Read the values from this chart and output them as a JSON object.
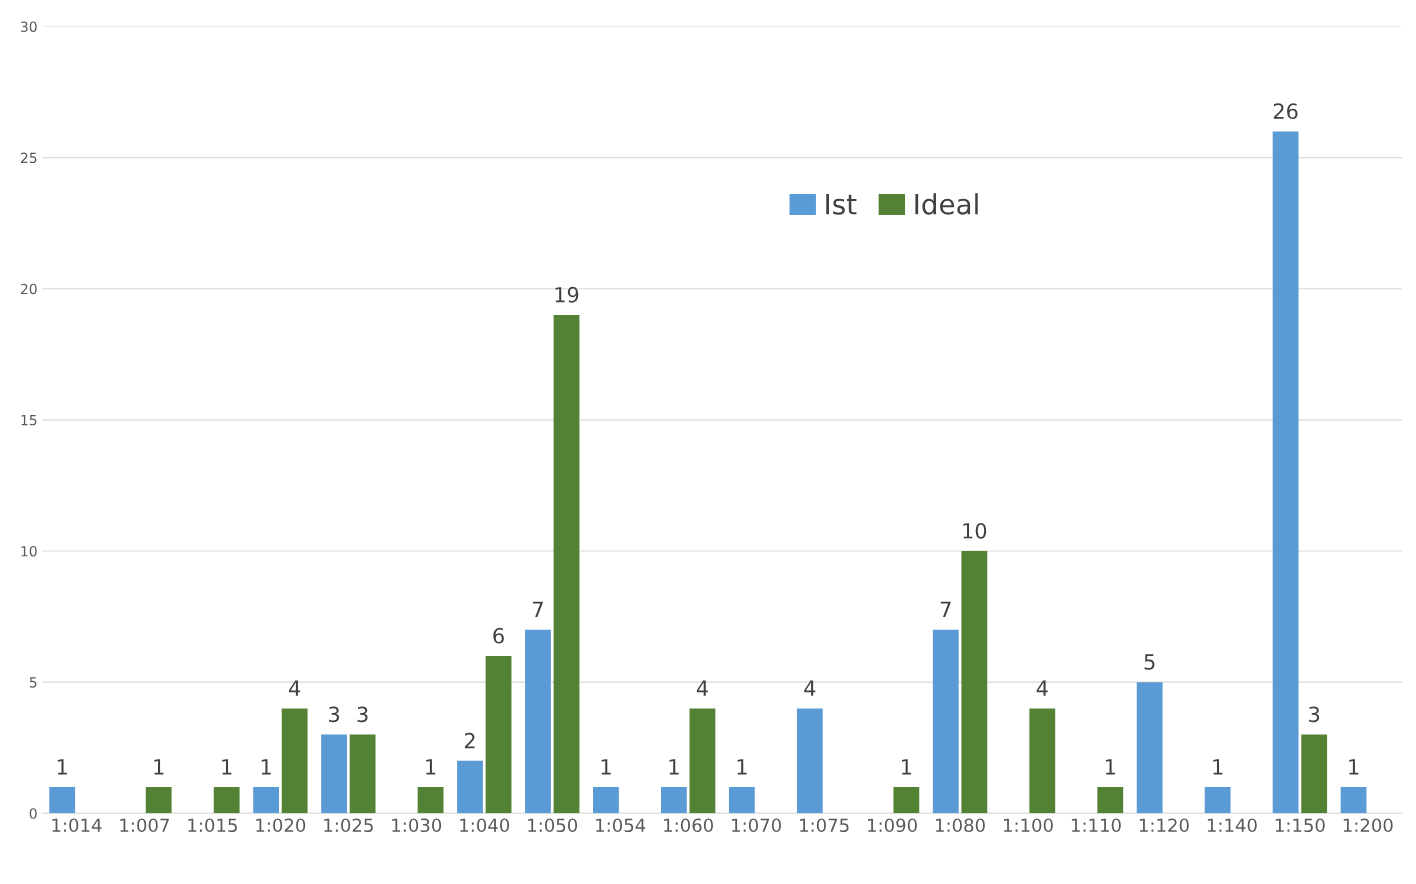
{
  "chart_data": {
    "type": "bar",
    "categories": [
      "1:014",
      "1:007",
      "1:015",
      "1:020",
      "1:025",
      "1:030",
      "1:040",
      "1:050",
      "1:054",
      "1:060",
      "1:070",
      "1:075",
      "1:090",
      "1:080",
      "1:100",
      "1:110",
      "1:120",
      "1:140",
      "1:150",
      "1:200"
    ],
    "series": [
      {
        "name": "Ist",
        "color": "#5b9bd5",
        "values": [
          1,
          null,
          null,
          1,
          3,
          null,
          2,
          7,
          1,
          1,
          1,
          4,
          null,
          7,
          null,
          null,
          5,
          1,
          26,
          1
        ]
      },
      {
        "name": "Ideal",
        "color": "#548235",
        "values": [
          null,
          1,
          1,
          4,
          3,
          1,
          6,
          19,
          null,
          4,
          null,
          null,
          1,
          10,
          4,
          1,
          null,
          null,
          3,
          null
        ]
      }
    ],
    "ylim": [
      0,
      30
    ],
    "yticks": [
      0,
      5,
      10,
      15,
      20,
      25,
      30
    ],
    "grid": "y",
    "legend": "top",
    "data_labels": true
  }
}
